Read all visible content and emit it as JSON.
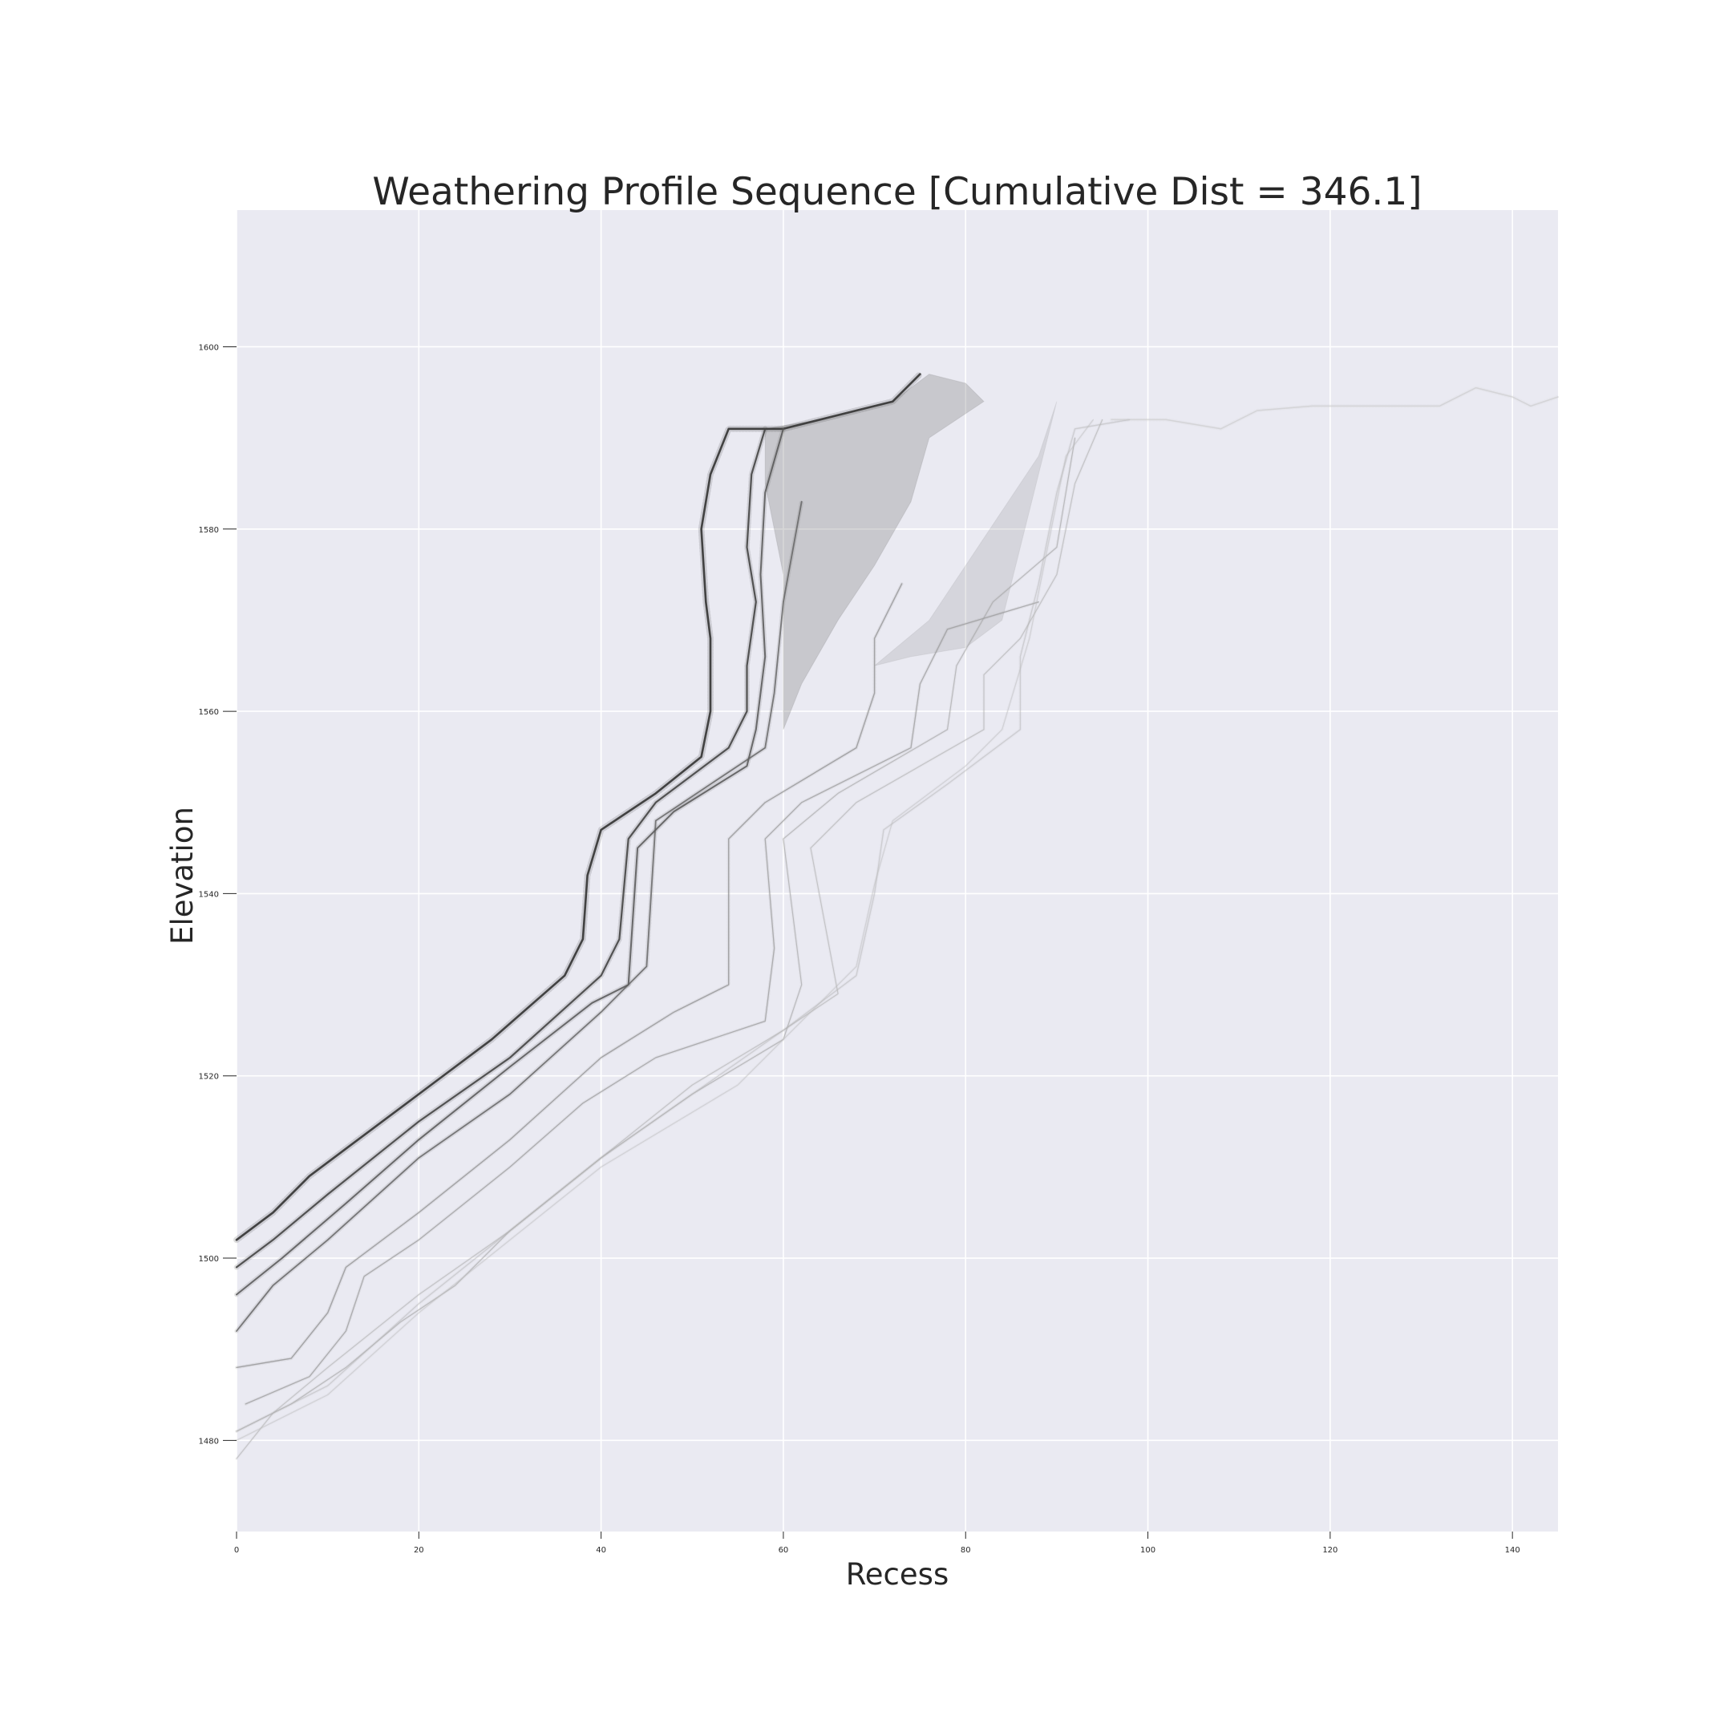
{
  "chart_data": {
    "type": "scatter",
    "title": "Weathering Profile Sequence [Cumulative Dist = 346.1]",
    "xlabel": "Recess",
    "ylabel": "Elevation",
    "xlim": [
      0,
      145
    ],
    "ylim": [
      1470,
      1615
    ],
    "xticks": [
      0,
      20,
      40,
      60,
      80,
      100,
      120,
      140
    ],
    "yticks": [
      1480,
      1500,
      1520,
      1540,
      1560,
      1580,
      1600
    ],
    "grid": true,
    "legend": "none",
    "colors": {
      "background": "#eaeaf2",
      "grid": "#ffffff"
    },
    "series": [
      {
        "color": "#3a3a3a",
        "width": 2.6,
        "opacity": 0.95,
        "points": [
          [
            0,
            1502
          ],
          [
            4,
            1505
          ],
          [
            8,
            1509
          ],
          [
            12,
            1512
          ],
          [
            20,
            1518
          ],
          [
            28,
            1524
          ],
          [
            36,
            1531
          ],
          [
            38,
            1535
          ],
          [
            38.5,
            1542
          ],
          [
            40,
            1547
          ],
          [
            46,
            1551
          ],
          [
            51,
            1555
          ],
          [
            52,
            1560
          ],
          [
            52,
            1568
          ],
          [
            51.5,
            1572
          ],
          [
            51,
            1580
          ],
          [
            52,
            1586
          ],
          [
            54,
            1591
          ],
          [
            60,
            1591
          ],
          [
            68,
            1593
          ],
          [
            72,
            1594
          ],
          [
            75,
            1597
          ]
        ]
      },
      {
        "color": "#444444",
        "width": 2.2,
        "opacity": 0.9,
        "points": [
          [
            0,
            1499
          ],
          [
            4,
            1502
          ],
          [
            10,
            1507
          ],
          [
            20,
            1515
          ],
          [
            30,
            1522
          ],
          [
            40,
            1531
          ],
          [
            42,
            1535
          ],
          [
            43,
            1546
          ],
          [
            46,
            1550
          ],
          [
            54,
            1556
          ],
          [
            56,
            1560
          ],
          [
            56,
            1565
          ],
          [
            57,
            1572
          ],
          [
            56,
            1578
          ],
          [
            56.5,
            1586
          ],
          [
            58,
            1591
          ]
        ]
      },
      {
        "color": "#555555",
        "width": 2.0,
        "opacity": 0.85,
        "points": [
          [
            0,
            1496
          ],
          [
            5,
            1500
          ],
          [
            12,
            1506
          ],
          [
            20,
            1513
          ],
          [
            30,
            1521
          ],
          [
            39,
            1528
          ],
          [
            43,
            1530
          ],
          [
            44,
            1545
          ],
          [
            48,
            1549
          ],
          [
            56,
            1554
          ],
          [
            57,
            1558
          ],
          [
            58,
            1566
          ],
          [
            57.5,
            1575
          ],
          [
            58,
            1584
          ],
          [
            60,
            1591
          ]
        ]
      },
      {
        "color": "#5f5f5f",
        "width": 1.8,
        "opacity": 0.8,
        "points": [
          [
            0,
            1492
          ],
          [
            4,
            1497
          ],
          [
            10,
            1502
          ],
          [
            20,
            1511
          ],
          [
            30,
            1518
          ],
          [
            40,
            1527
          ],
          [
            45,
            1532
          ],
          [
            46,
            1548
          ],
          [
            52,
            1552
          ],
          [
            58,
            1556
          ],
          [
            59,
            1562
          ],
          [
            60,
            1572
          ],
          [
            62,
            1583
          ]
        ]
      },
      {
        "color": "#8a8a8a",
        "width": 1.4,
        "opacity": 0.7,
        "points": [
          [
            0,
            1488
          ],
          [
            6,
            1489
          ],
          [
            10,
            1494
          ],
          [
            12,
            1499
          ],
          [
            20,
            1505
          ],
          [
            30,
            1513
          ],
          [
            40,
            1522
          ],
          [
            48,
            1527
          ],
          [
            54,
            1530
          ],
          [
            54,
            1546
          ],
          [
            58,
            1550
          ],
          [
            68,
            1556
          ],
          [
            70,
            1562
          ],
          [
            70,
            1568
          ],
          [
            73,
            1574
          ]
        ]
      },
      {
        "color": "#909090",
        "width": 1.3,
        "opacity": 0.65,
        "points": [
          [
            1,
            1484
          ],
          [
            8,
            1487
          ],
          [
            12,
            1492
          ],
          [
            14,
            1498
          ],
          [
            20,
            1502
          ],
          [
            30,
            1510
          ],
          [
            38,
            1517
          ],
          [
            46,
            1522
          ],
          [
            58,
            1526
          ],
          [
            59,
            1534
          ],
          [
            58,
            1546
          ],
          [
            62,
            1550
          ],
          [
            74,
            1556
          ],
          [
            75,
            1563
          ],
          [
            78,
            1569
          ],
          [
            88,
            1572
          ]
        ]
      },
      {
        "color": "#a0a0a0",
        "width": 1.2,
        "opacity": 0.6,
        "points": [
          [
            0,
            1481
          ],
          [
            6,
            1484
          ],
          [
            12,
            1488
          ],
          [
            18,
            1493
          ],
          [
            24,
            1497
          ],
          [
            30,
            1503
          ],
          [
            40,
            1511
          ],
          [
            50,
            1518
          ],
          [
            60,
            1524
          ],
          [
            62,
            1530
          ],
          [
            60,
            1546
          ],
          [
            66,
            1551
          ],
          [
            78,
            1558
          ],
          [
            79,
            1565
          ],
          [
            83,
            1572
          ],
          [
            90,
            1578
          ],
          [
            92,
            1590
          ]
        ]
      },
      {
        "color": "#aaaaaa",
        "width": 1.2,
        "opacity": 0.55,
        "points": [
          [
            0,
            1478
          ],
          [
            4,
            1483
          ],
          [
            10,
            1488
          ],
          [
            20,
            1496
          ],
          [
            30,
            1503
          ],
          [
            40,
            1511
          ],
          [
            50,
            1519
          ],
          [
            60,
            1525
          ],
          [
            66,
            1529
          ],
          [
            63,
            1545
          ],
          [
            68,
            1550
          ],
          [
            82,
            1558
          ],
          [
            82,
            1564
          ],
          [
            86,
            1568
          ],
          [
            90,
            1575
          ],
          [
            92,
            1585
          ],
          [
            95,
            1592
          ]
        ]
      },
      {
        "color": "#b5b5b5",
        "width": 1.3,
        "opacity": 0.5,
        "points": [
          [
            0,
            1481
          ],
          [
            10,
            1486
          ],
          [
            20,
            1495
          ],
          [
            30,
            1503
          ],
          [
            40,
            1511
          ],
          [
            50,
            1518
          ],
          [
            60,
            1525
          ],
          [
            68,
            1531
          ],
          [
            70,
            1540
          ],
          [
            71,
            1547
          ],
          [
            78,
            1552
          ],
          [
            86,
            1558
          ],
          [
            86,
            1566
          ],
          [
            88,
            1574
          ],
          [
            90,
            1584
          ],
          [
            92,
            1591
          ],
          [
            98,
            1592
          ]
        ]
      },
      {
        "color": "#bdbdbd",
        "width": 1.2,
        "opacity": 0.5,
        "points": [
          [
            0,
            1480
          ],
          [
            10,
            1485
          ],
          [
            20,
            1494
          ],
          [
            30,
            1502
          ],
          [
            40,
            1510
          ],
          [
            55,
            1519
          ],
          [
            68,
            1532
          ],
          [
            70,
            1541
          ],
          [
            72,
            1548
          ],
          [
            80,
            1554
          ],
          [
            84,
            1558
          ],
          [
            87,
            1568
          ],
          [
            89,
            1578
          ],
          [
            91,
            1588
          ],
          [
            94,
            1592
          ]
        ]
      },
      {
        "color": "#c4c4c4",
        "width": 1.5,
        "opacity": 0.55,
        "points": [
          [
            96,
            1592
          ],
          [
            102,
            1592
          ],
          [
            108,
            1591
          ],
          [
            112,
            1593
          ],
          [
            118,
            1593.5
          ],
          [
            126,
            1593.5
          ],
          [
            132,
            1593.5
          ],
          [
            136,
            1595.5
          ],
          [
            140,
            1594.5
          ],
          [
            142,
            1593.5
          ],
          [
            145,
            1594.5
          ]
        ]
      }
    ],
    "clouds": [
      {
        "color": "#6e6e6e",
        "opacity": 0.28,
        "outline": [
          [
            58,
            1591
          ],
          [
            64,
            1592
          ],
          [
            72,
            1594
          ],
          [
            76,
            1597
          ],
          [
            80,
            1596
          ],
          [
            82,
            1594
          ],
          [
            76,
            1590
          ],
          [
            74,
            1583
          ],
          [
            70,
            1576
          ],
          [
            66,
            1570
          ],
          [
            62,
            1563
          ],
          [
            60,
            1558
          ],
          [
            60,
            1575
          ],
          [
            58,
            1585
          ]
        ]
      },
      {
        "color": "#7a7a7a",
        "opacity": 0.18,
        "outline": [
          [
            70,
            1565
          ],
          [
            76,
            1570
          ],
          [
            80,
            1576
          ],
          [
            84,
            1582
          ],
          [
            88,
            1588
          ],
          [
            90,
            1594
          ],
          [
            88,
            1586
          ],
          [
            86,
            1578
          ],
          [
            84,
            1570
          ],
          [
            80,
            1567
          ],
          [
            74,
            1566
          ]
        ]
      }
    ]
  }
}
